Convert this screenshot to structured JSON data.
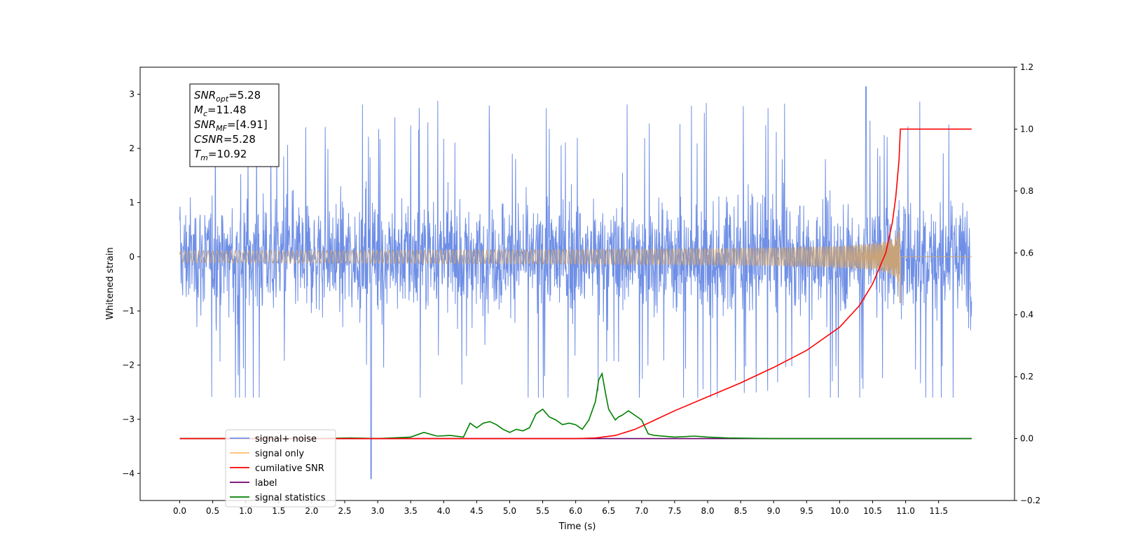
{
  "chart_data": {
    "type": "line",
    "title": "",
    "xlabel": "Time (s)",
    "ylabel": "Whitened strain",
    "xlim": [
      -0.6,
      12.65
    ],
    "ylim": [
      -4.5,
      3.5
    ],
    "y2lim": [
      -0.2,
      1.2
    ],
    "xticks": [
      "0.0",
      "0.5",
      "1.0",
      "1.5",
      "2.0",
      "2.5",
      "3.0",
      "3.5",
      "4.0",
      "4.5",
      "5.0",
      "5.5",
      "6.0",
      "6.5",
      "7.0",
      "7.5",
      "8.0",
      "8.5",
      "9.0",
      "9.5",
      "10.0",
      "10.5",
      "11.0",
      "11.5"
    ],
    "yticks": [
      "3",
      "2",
      "1",
      "0",
      "−1",
      "−2",
      "−3",
      "−4"
    ],
    "y2ticks": [
      "1.2",
      "1.0",
      "0.8",
      "0.6",
      "0.4",
      "0.2",
      "0.0",
      "−0.2"
    ],
    "grid": false,
    "legend_position": "lower-left",
    "annotation": {
      "lines": [
        {
          "sym": "SNR",
          "sub": "opt",
          "value": "=5.28"
        },
        {
          "sym": "M",
          "sub": "c",
          "value": "=11.48"
        },
        {
          "sym": "SNR",
          "sub": "MF",
          "value": "=[4.91]"
        },
        {
          "sym": "CSNR",
          "sub": "",
          "value": "=5.28"
        },
        {
          "sym": "T",
          "sub": "m",
          "value": "=10.92"
        }
      ]
    },
    "series": [
      {
        "name": "signal+ noise",
        "color": "#6f8fe6",
        "axis": "left",
        "description_values": {
          "t_start": 0.0,
          "t_end": 12.0,
          "typical_amplitude": 1.3,
          "max": 3.14,
          "min": -4.1,
          "spike_time_min": 2.9,
          "spike_time_max": 10.4
        }
      },
      {
        "name": "signal only",
        "color": "#ffbf6b",
        "axis": "left",
        "chirp": {
          "t_start": 0.0,
          "t_merge": 10.92,
          "t_end": 12.0,
          "peak_amplitude": 0.55,
          "min_amplitude": -0.85
        }
      },
      {
        "name": "cumilative SNR",
        "color": "#ff0000",
        "axis": "right",
        "x": [
          0.0,
          6.0,
          6.3,
          6.6,
          6.9,
          7.2,
          7.5,
          8.0,
          8.5,
          9.0,
          9.5,
          10.0,
          10.3,
          10.5,
          10.7,
          10.8,
          10.85,
          10.9,
          10.92,
          12.0
        ],
        "y": [
          0.0,
          0.0,
          0.002,
          0.01,
          0.03,
          0.06,
          0.09,
          0.135,
          0.18,
          0.23,
          0.285,
          0.36,
          0.43,
          0.5,
          0.6,
          0.7,
          0.78,
          0.9,
          1.0,
          1.0
        ]
      },
      {
        "name": "label",
        "color": "#6a006a",
        "axis": "right",
        "x": [
          0.0,
          12.0
        ],
        "y": [
          0.0,
          0.0
        ]
      },
      {
        "name": "signal statistics",
        "color": "#008000",
        "axis": "right",
        "x": [
          0.0,
          2.0,
          2.6,
          3.0,
          3.5,
          3.7,
          3.9,
          4.1,
          4.3,
          4.4,
          4.5,
          4.6,
          4.7,
          4.8,
          4.9,
          5.0,
          5.1,
          5.2,
          5.3,
          5.4,
          5.5,
          5.6,
          5.7,
          5.8,
          5.9,
          6.0,
          6.1,
          6.2,
          6.3,
          6.35,
          6.4,
          6.45,
          6.5,
          6.6,
          6.65,
          6.7,
          6.8,
          6.9,
          7.0,
          7.1,
          7.2,
          7.5,
          7.8,
          8.0,
          8.3,
          9.0,
          12.0
        ],
        "y": [
          0.0,
          0.0,
          0.002,
          0.0,
          0.005,
          0.02,
          0.008,
          0.01,
          0.005,
          0.05,
          0.035,
          0.05,
          0.055,
          0.045,
          0.03,
          0.02,
          0.03,
          0.025,
          0.035,
          0.08,
          0.095,
          0.07,
          0.06,
          0.045,
          0.05,
          0.045,
          0.03,
          0.06,
          0.12,
          0.19,
          0.21,
          0.15,
          0.095,
          0.06,
          0.07,
          0.075,
          0.09,
          0.075,
          0.06,
          0.015,
          0.01,
          0.005,
          0.008,
          0.005,
          0.002,
          0.0,
          0.0
        ]
      }
    ],
    "legend": [
      {
        "label": "signal+ noise",
        "color": "#6f8fe6"
      },
      {
        "label": "signal only",
        "color": "#ffbf6b"
      },
      {
        "label": "cumilative SNR",
        "color": "#ff0000"
      },
      {
        "label": "label",
        "color": "#6a006a"
      },
      {
        "label": "signal statistics",
        "color": "#008000"
      }
    ]
  }
}
